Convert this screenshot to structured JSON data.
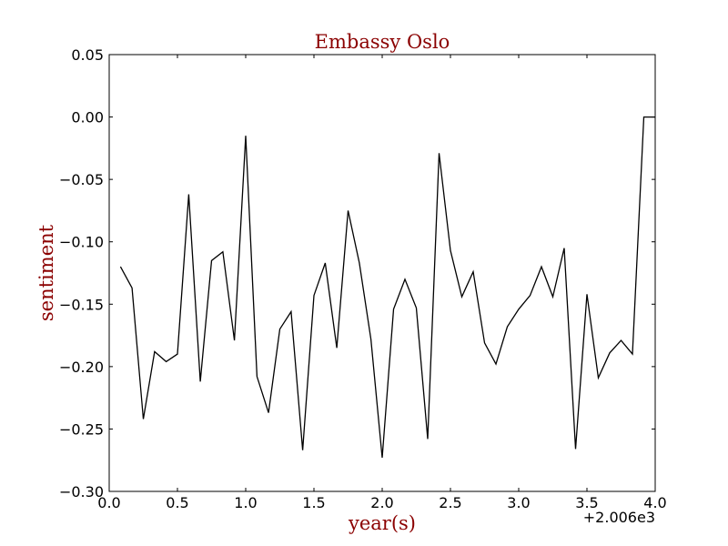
{
  "chart_data": {
    "type": "line",
    "title": "Embassy Oslo",
    "xlabel": "year(s)",
    "ylabel": "sentiment",
    "x_offset_label": "+2.006e3",
    "xlim": [
      0.0,
      4.0
    ],
    "ylim": [
      -0.3,
      0.05
    ],
    "xticks": [
      0.0,
      0.5,
      1.0,
      1.5,
      2.0,
      2.5,
      3.0,
      3.5,
      4.0
    ],
    "xtick_labels": [
      "0.0",
      "0.5",
      "1.0",
      "1.5",
      "2.0",
      "2.5",
      "3.0",
      "3.5",
      "4.0"
    ],
    "yticks": [
      0.05,
      0.0,
      -0.05,
      -0.1,
      -0.15,
      -0.2,
      -0.25,
      -0.3
    ],
    "ytick_labels": [
      "0.05",
      "0.00",
      "−0.05",
      "−0.10",
      "−0.15",
      "−0.20",
      "−0.25",
      "−0.30"
    ],
    "grid": false,
    "series": [
      {
        "name": "sentiment",
        "x": [
          0.083,
          0.167,
          0.25,
          0.333,
          0.417,
          0.5,
          0.583,
          0.667,
          0.75,
          0.833,
          0.917,
          1.0,
          1.083,
          1.167,
          1.25,
          1.333,
          1.417,
          1.5,
          1.583,
          1.667,
          1.75,
          1.833,
          1.917,
          2.0,
          2.083,
          2.167,
          2.25,
          2.333,
          2.417,
          2.5,
          2.583,
          2.667,
          2.75,
          2.833,
          2.917,
          3.0,
          3.083,
          3.167,
          3.25,
          3.333,
          3.417,
          3.5,
          3.583,
          3.667,
          3.75,
          3.833,
          3.917,
          4.0
        ],
        "values": [
          -0.12,
          -0.137,
          -0.242,
          -0.188,
          -0.196,
          -0.19,
          -0.062,
          -0.212,
          -0.115,
          -0.108,
          -0.179,
          -0.015,
          -0.208,
          -0.237,
          -0.17,
          -0.156,
          -0.267,
          -0.143,
          -0.117,
          -0.185,
          -0.075,
          -0.117,
          -0.178,
          -0.273,
          -0.154,
          -0.13,
          -0.153,
          -0.258,
          -0.029,
          -0.107,
          -0.144,
          -0.124,
          -0.181,
          -0.198,
          -0.168,
          -0.154,
          -0.143,
          -0.12,
          -0.144,
          -0.105,
          -0.266,
          -0.142,
          -0.209,
          -0.189,
          -0.179,
          -0.19,
          0.0,
          0.0
        ]
      }
    ],
    "colors": {
      "title": "#8b0000",
      "axis_title": "#8b0000",
      "line": "#000000",
      "frame": "#000000"
    }
  }
}
